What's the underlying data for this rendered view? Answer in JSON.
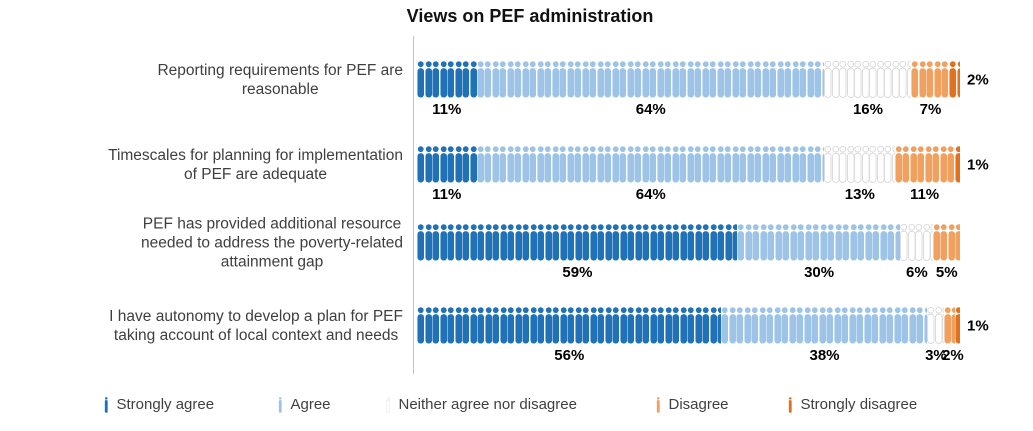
{
  "title": "Views on PEF administration",
  "colors": {
    "strongly_agree": "#2071B5",
    "agree": "#9DC3E6",
    "neither": "#FFFFFF",
    "neither_outline": "#D2D2D2",
    "disagree": "#F0A160",
    "strongly_disagree": "#E2701D",
    "axis_line": "#C3C3C3"
  },
  "legend": [
    {
      "label": "Strongly agree"
    },
    {
      "label": "Agree"
    },
    {
      "label": "Neither agree nor disagree"
    },
    {
      "label": "Disagree"
    },
    {
      "label": "Strongly disagree"
    }
  ],
  "chart_data": {
    "type": "bar",
    "subtype": "horizontal-stacked-pictogram",
    "title": "Views on PEF administration",
    "categories": [
      "Reporting requirements for PEF are reasonable",
      "Timescales for planning for implementation of PEF are adequate",
      "PEF has provided additional resource needed to address the poverty-related attainment gap",
      "I have autonomy to develop a plan for PEF taking account of local context and needs"
    ],
    "label_lines": [
      [
        "Reporting requirements for PEF are",
        "reasonable"
      ],
      [
        "Timescales for planning for implementation",
        "of PEF are adequate"
      ],
      [
        "PEF has provided additional resource",
        "needed to address the poverty-related",
        "attainment gap"
      ],
      [
        "I have autonomy to develop a plan for PEF",
        "taking account of local context and needs"
      ]
    ],
    "series": [
      {
        "name": "Strongly agree",
        "values": [
          11,
          11,
          59,
          56
        ]
      },
      {
        "name": "Agree",
        "values": [
          64,
          64,
          30,
          38
        ]
      },
      {
        "name": "Neither agree nor disagree",
        "values": [
          16,
          13,
          6,
          3
        ]
      },
      {
        "name": "Disagree",
        "values": [
          7,
          11,
          5,
          2
        ]
      },
      {
        "name": "Strongly disagree",
        "values": [
          2,
          1,
          0,
          1
        ]
      }
    ],
    "value_suffix": "%",
    "xlim": [
      0,
      100
    ],
    "grid": false,
    "legend_position": "bottom"
  }
}
